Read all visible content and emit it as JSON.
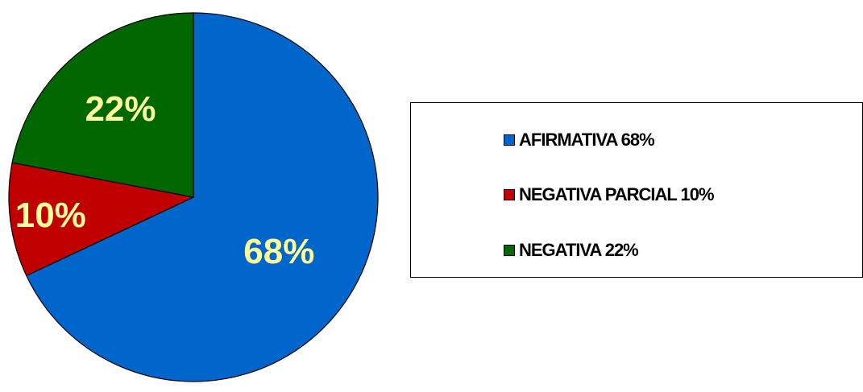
{
  "chart_data": {
    "type": "pie",
    "slices": [
      {
        "label": "AFIRMATIVA 68%",
        "value": 68,
        "data_label": "68%",
        "color": "#0066cc"
      },
      {
        "label": "NEGATIVA PARCIAL 10%",
        "value": 10,
        "data_label": "10%",
        "color": "#c00000"
      },
      {
        "label": "NEGATIVA 22%",
        "value": 22,
        "data_label": "22%",
        "color": "#006600"
      }
    ],
    "legend_position": "right",
    "data_label_color": "#ffff99",
    "outline_color": "#000000"
  }
}
